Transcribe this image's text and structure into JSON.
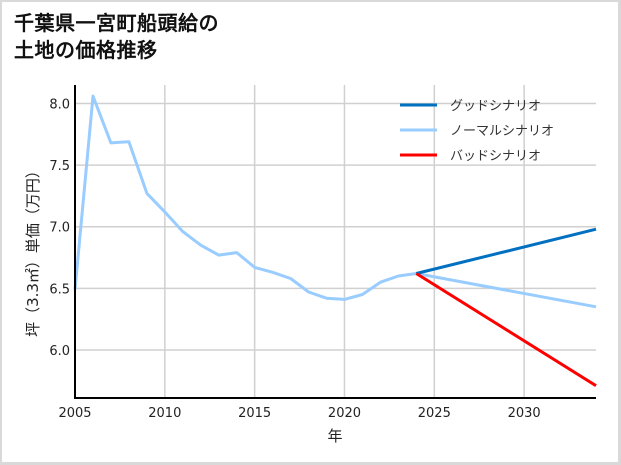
{
  "title_line1": "千葉県一宮町船頭給の",
  "title_line2": "土地の価格推移",
  "colors": {
    "good": "#0070c0",
    "normal": "#99ccff",
    "bad": "#ff0000",
    "grid": "#d0d0d0",
    "axis": "#000000"
  },
  "chart_data": {
    "type": "line",
    "title": "千葉県一宮町船頭給の土地の価格推移",
    "xlabel": "年",
    "ylabel": "坪（3.3㎡）単価（万円）",
    "xlim": [
      2005,
      2034
    ],
    "ylim": [
      5.61,
      8.15
    ],
    "xticks": [
      2005,
      2010,
      2015,
      2020,
      2025,
      2030
    ],
    "yticks": [
      6.0,
      6.5,
      7.0,
      7.5,
      8.0
    ],
    "grid": true,
    "legend_position": "upper right",
    "series": [
      {
        "name": "グッドシナリオ",
        "color": "#0070c0",
        "x": [
          2024,
          2034
        ],
        "values": [
          6.62,
          6.98
        ]
      },
      {
        "name": "ノーマルシナリオ",
        "color": "#99ccff",
        "x": [
          2005,
          2006,
          2007,
          2008,
          2009,
          2010,
          2011,
          2012,
          2013,
          2014,
          2015,
          2016,
          2017,
          2018,
          2019,
          2020,
          2021,
          2022,
          2023,
          2024,
          2034
        ],
        "values": [
          6.49,
          8.06,
          7.68,
          7.69,
          7.27,
          7.12,
          6.96,
          6.85,
          6.77,
          6.79,
          6.67,
          6.63,
          6.58,
          6.47,
          6.42,
          6.41,
          6.45,
          6.55,
          6.6,
          6.62,
          6.35
        ]
      },
      {
        "name": "バッドシナリオ",
        "color": "#ff0000",
        "x": [
          2024,
          2034
        ],
        "values": [
          6.62,
          5.71
        ]
      }
    ]
  },
  "axis": {
    "xlabel": "年",
    "ylabel": "坪（3.3㎡）単価（万円）",
    "xtick_labels": [
      "2005",
      "2010",
      "2015",
      "2020",
      "2025",
      "2030"
    ],
    "ytick_labels": [
      "6.0",
      "6.5",
      "7.0",
      "7.5",
      "8.0"
    ]
  },
  "legend": [
    {
      "label": "グッドシナリオ",
      "color": "#0070c0"
    },
    {
      "label": "ノーマルシナリオ",
      "color": "#99ccff"
    },
    {
      "label": "バッドシナリオ",
      "color": "#ff0000"
    }
  ]
}
